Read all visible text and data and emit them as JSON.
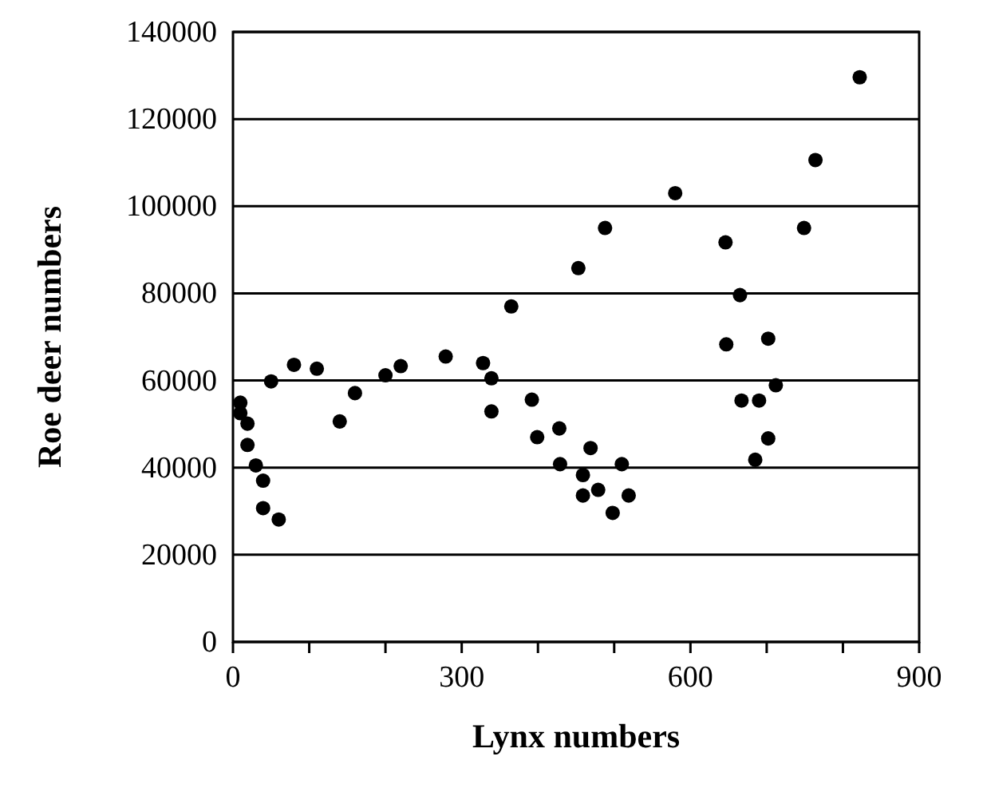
{
  "chart_data": {
    "type": "scatter",
    "xlabel": "Lynx numbers",
    "ylabel": "Roe deer numbers",
    "x": [
      9.6,
      9.6,
      19,
      19,
      30,
      39.5,
      39.5,
      60,
      50,
      80,
      110,
      140,
      160,
      200,
      220,
      279,
      328,
      339,
      339,
      365,
      453,
      488,
      392,
      399,
      428,
      429,
      469,
      459,
      459,
      479,
      510,
      498,
      519,
      580,
      646,
      665,
      702,
      647,
      712,
      667,
      690,
      702,
      685,
      749,
      764,
      822
    ],
    "values": [
      54900,
      52500,
      50100,
      45200,
      40500,
      37000,
      30700,
      28100,
      59800,
      63600,
      62700,
      50600,
      57100,
      61200,
      63300,
      65500,
      64000,
      60500,
      52900,
      77000,
      85800,
      95000,
      55600,
      47000,
      49000,
      40800,
      44500,
      38300,
      33600,
      34900,
      40800,
      29600,
      33600,
      103000,
      91700,
      79600,
      69600,
      68300,
      58900,
      55400,
      55400,
      46700,
      41800,
      95000,
      110600,
      129600
    ],
    "color": "#000000",
    "marker": "circle",
    "xlim": [
      0,
      900
    ],
    "xticks": [
      0,
      {
        "value": 100,
        "label": null
      },
      {
        "value": 200,
        "label": null
      },
      300,
      {
        "value": 400,
        "label": null
      },
      {
        "value": 500,
        "label": null
      },
      600,
      {
        "value": 700,
        "label": null
      },
      {
        "value": 800,
        "label": null
      },
      900
    ],
    "ylim": [
      0,
      140000
    ],
    "yticks": [
      0,
      20000,
      40000,
      60000,
      80000,
      100000,
      120000,
      140000
    ],
    "grid": "y"
  }
}
